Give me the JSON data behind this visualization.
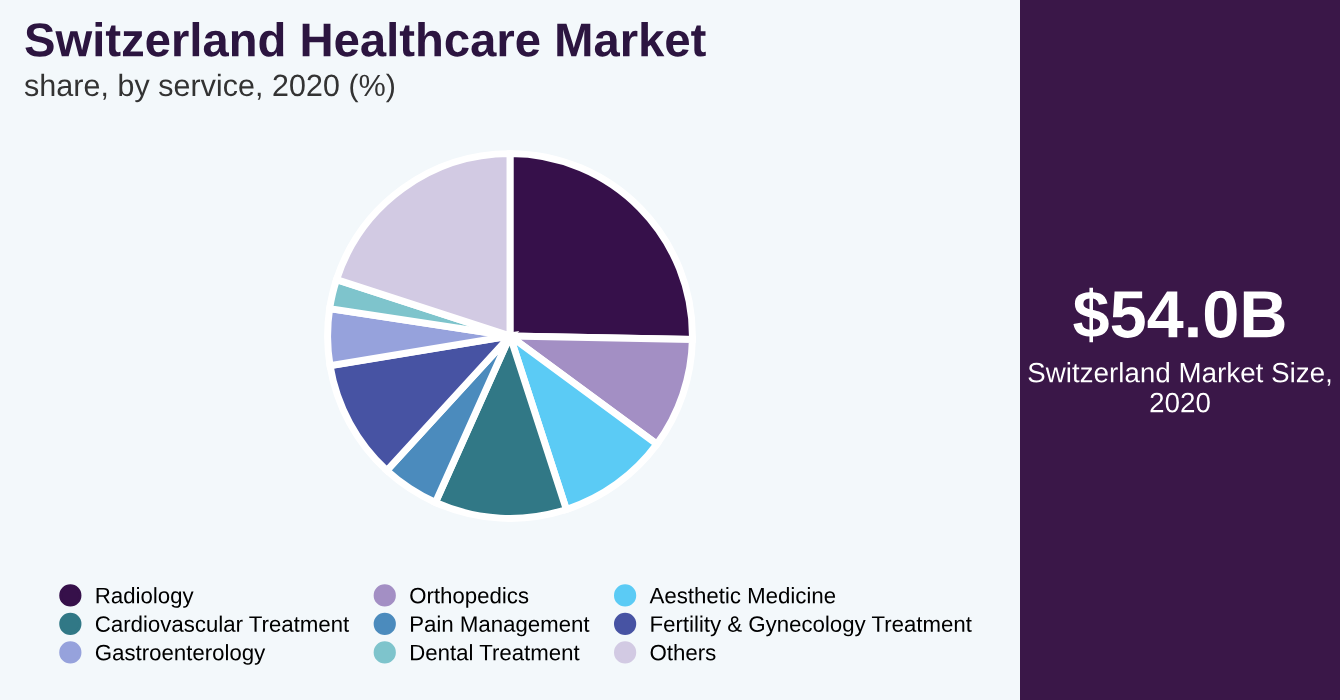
{
  "chart_data": {
    "type": "pie",
    "title": "Switzerland Healthcare Market",
    "subtitle": "share, by service, 2020 (%)",
    "categories": [
      "Radiology",
      "Orthopedics",
      "Aesthetic Medicine",
      "Cardiovascular Treatment",
      "Pain Management",
      "Fertility & Gynecology Treatment",
      "Gastroenterology",
      "Dental Treatment",
      "Others"
    ],
    "values": [
      25.3,
      9.8,
      9.9,
      11.7,
      5.1,
      10.6,
      5.0,
      2.6,
      20.0
    ],
    "colors": [
      "#36104a",
      "#a38fc4",
      "#5bcbf5",
      "#317886",
      "#4b8bbd",
      "#4753a3",
      "#96a2dc",
      "#7ec4cc",
      "#d2cae3"
    ],
    "legend": "bottom",
    "annotations": [
      "$54.0B",
      "Switzerland Market Size, 2020"
    ]
  }
}
